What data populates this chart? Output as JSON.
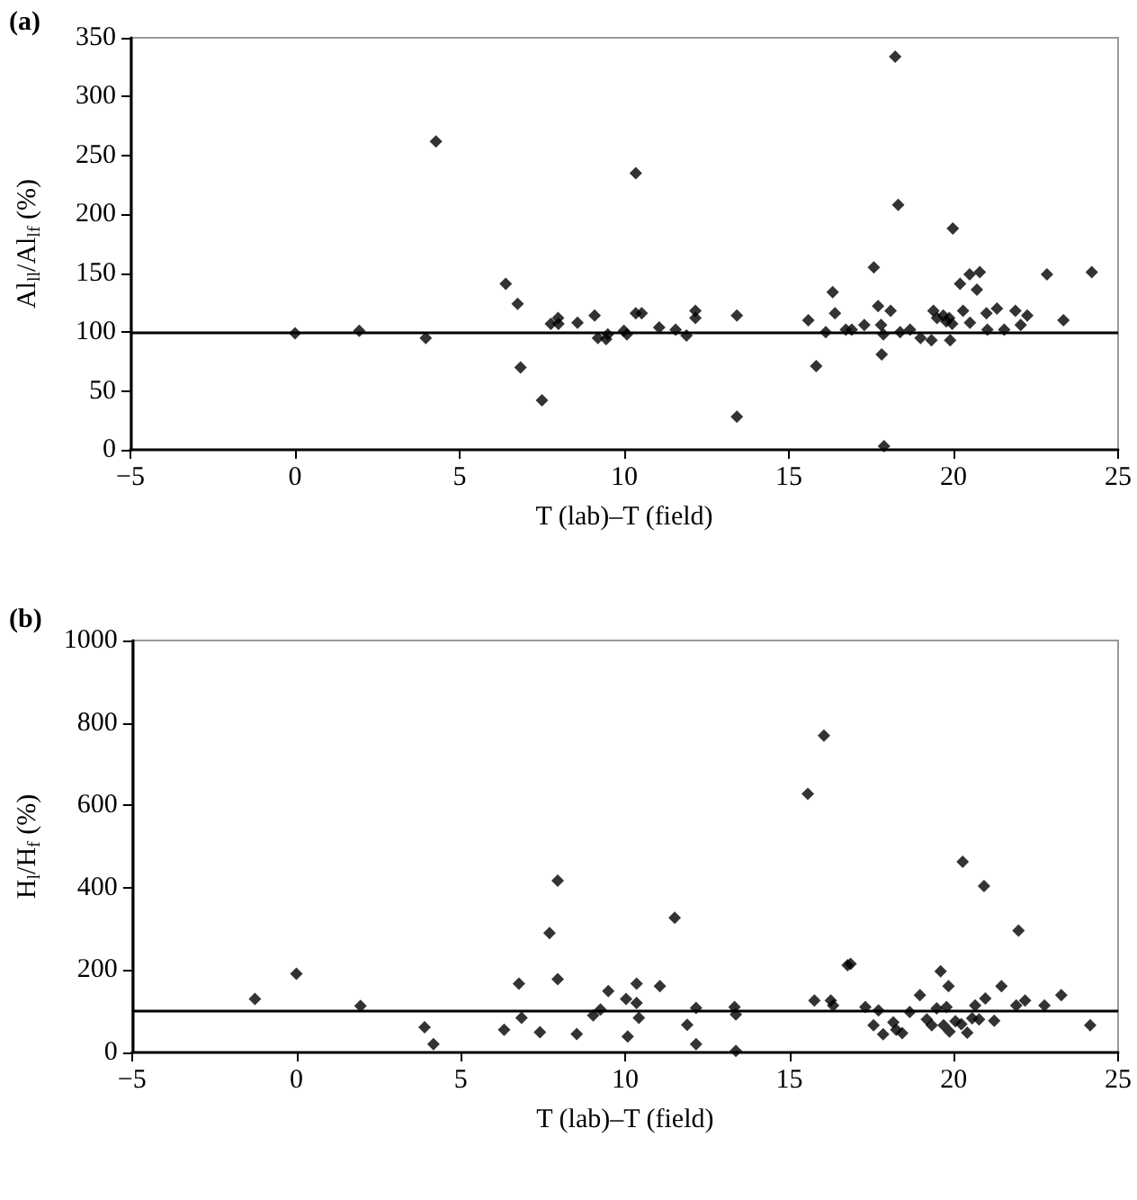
{
  "chart_data": [
    {
      "type": "scatter",
      "title": "(a)",
      "xlabel": "T (lab)–T (field)",
      "ylabel": "Al$_{ll}$/Al$_{lf}$ (%)",
      "marker": "diamond",
      "grid": false,
      "xlim": [
        -5,
        25
      ],
      "xticks": [
        -5,
        0,
        5,
        10,
        15,
        20,
        25
      ],
      "ylim": [
        0,
        350
      ],
      "yticks": [
        0,
        50,
        100,
        150,
        200,
        250,
        300,
        350
      ],
      "ref_lines": [
        {
          "axis": "y",
          "value": 100,
          "color": "#000000"
        }
      ],
      "series": [
        {
          "color": "#000000",
          "x": [
            0.0,
            1.95,
            4.28,
            3.97,
            6.4,
            6.76,
            6.85,
            7.5,
            7.77,
            7.99,
            8.0,
            8.58,
            9.1,
            9.2,
            9.45,
            9.5,
            9.99,
            10.08,
            10.35,
            10.35,
            10.53,
            11.06,
            11.56,
            11.89,
            12.16,
            12.16,
            13.42,
            13.42,
            15.59,
            15.83,
            16.12,
            16.33,
            16.4,
            16.73,
            16.91,
            17.29,
            17.58,
            17.71,
            17.8,
            17.82,
            17.87,
            17.89,
            18.09,
            18.23,
            18.32,
            18.38,
            18.68,
            19.0,
            19.33,
            19.39,
            19.5,
            19.69,
            19.78,
            19.87,
            19.96,
            19.9,
            19.98,
            20.2,
            20.29,
            20.49,
            20.5,
            20.71,
            20.8,
            21.0,
            21.03,
            21.32,
            21.54,
            21.88,
            22.04,
            22.24,
            22.84,
            23.34,
            24.2
          ],
          "values": [
            99,
            101,
            262,
            95,
            141,
            124,
            70,
            42,
            107,
            112,
            107,
            108,
            114,
            95,
            94,
            98,
            101,
            98,
            235,
            116,
            116,
            104,
            102,
            97,
            118,
            112,
            114,
            28,
            110,
            71,
            100,
            134,
            116,
            102,
            102,
            106,
            155,
            122,
            106,
            81,
            98,
            3,
            118,
            334,
            208,
            100,
            102,
            95,
            93,
            118,
            112,
            114,
            109,
            112,
            107,
            93,
            188,
            141,
            118,
            149,
            108,
            136,
            151,
            116,
            102,
            120,
            102,
            118,
            106,
            114,
            149,
            110,
            151
          ]
        }
      ]
    },
    {
      "type": "scatter",
      "title": "(b)",
      "xlabel": "T (lab)–T (field)",
      "ylabel": "H$_{l}$/H$_{f}$ (%)",
      "marker": "diamond",
      "grid": false,
      "xlim": [
        -5,
        25
      ],
      "xticks": [
        -5,
        0,
        5,
        10,
        15,
        20,
        25
      ],
      "ylim": [
        0,
        1000
      ],
      "yticks": [
        0,
        200,
        400,
        600,
        800,
        1000
      ],
      "ref_lines": [
        {
          "axis": "y",
          "value": 100,
          "color": "#000000"
        }
      ],
      "series": [
        {
          "color": "#000000",
          "x": [
            -1.26,
            0.0,
            1.95,
            3.9,
            4.17,
            6.32,
            6.77,
            6.85,
            7.41,
            7.7,
            7.95,
            7.95,
            8.53,
            9.03,
            9.25,
            9.49,
            10.03,
            10.08,
            10.35,
            10.35,
            10.42,
            11.06,
            11.51,
            11.89,
            12.16,
            12.16,
            13.33,
            13.37,
            13.37,
            15.56,
            16.05,
            15.76,
            16.26,
            16.33,
            16.77,
            16.86,
            17.31,
            17.56,
            17.71,
            17.85,
            18.16,
            18.25,
            18.43,
            18.66,
            18.97,
            19.18,
            19.33,
            19.48,
            19.6,
            19.69,
            19.78,
            19.84,
            19.87,
            20.05,
            20.23,
            20.27,
            20.41,
            20.56,
            20.65,
            20.77,
            20.92,
            20.96,
            21.23,
            21.45,
            21.9,
            21.97,
            22.17,
            22.76,
            23.27,
            24.15
          ],
          "values": [
            130,
            191,
            113,
            61,
            20,
            55,
            167,
            84,
            49,
            290,
            417,
            178,
            45,
            90,
            104,
            149,
            130,
            39,
            167,
            120,
            84,
            161,
            327,
            67,
            108,
            20,
            110,
            92,
            4,
            628,
            769,
            126,
            126,
            114,
            212,
            215,
            110,
            66,
            102,
            44,
            73,
            55,
            47,
            98,
            139,
            80,
            66,
            107,
            197,
            66,
            110,
            161,
            51,
            76,
            69,
            463,
            48,
            83,
            114,
            80,
            404,
            131,
            77,
            161,
            114,
            296,
            126,
            114,
            139,
            66
          ]
        }
      ]
    }
  ]
}
